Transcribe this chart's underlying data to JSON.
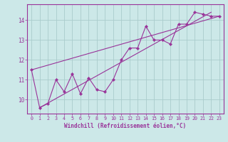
{
  "xlabel": "Windchill (Refroidissement éolien,°C)",
  "x_data": [
    0,
    1,
    2,
    3,
    4,
    5,
    6,
    7,
    8,
    9,
    10,
    11,
    12,
    13,
    14,
    15,
    16,
    17,
    18,
    19,
    20,
    21,
    22,
    23
  ],
  "y_data": [
    11.5,
    9.6,
    9.8,
    11.0,
    10.4,
    11.3,
    10.3,
    11.1,
    10.5,
    10.4,
    11.0,
    12.0,
    12.6,
    12.6,
    13.7,
    13.0,
    13.0,
    12.8,
    13.8,
    13.8,
    14.4,
    14.3,
    14.2,
    14.2
  ],
  "trend1_x": [
    0,
    23
  ],
  "trend1_y": [
    11.5,
    14.2
  ],
  "trend2_x": [
    1,
    22
  ],
  "trend2_y": [
    9.6,
    14.4
  ],
  "line_color": "#993399",
  "bg_color": "#cce8e8",
  "grid_color": "#aacccc",
  "text_color": "#993399",
  "xlim": [
    -0.5,
    23.5
  ],
  "ylim": [
    9.3,
    14.8
  ],
  "xticks": [
    0,
    1,
    2,
    3,
    4,
    5,
    6,
    7,
    8,
    9,
    10,
    11,
    12,
    13,
    14,
    15,
    16,
    17,
    18,
    19,
    20,
    21,
    22,
    23
  ],
  "yticks": [
    10,
    11,
    12,
    13,
    14
  ]
}
